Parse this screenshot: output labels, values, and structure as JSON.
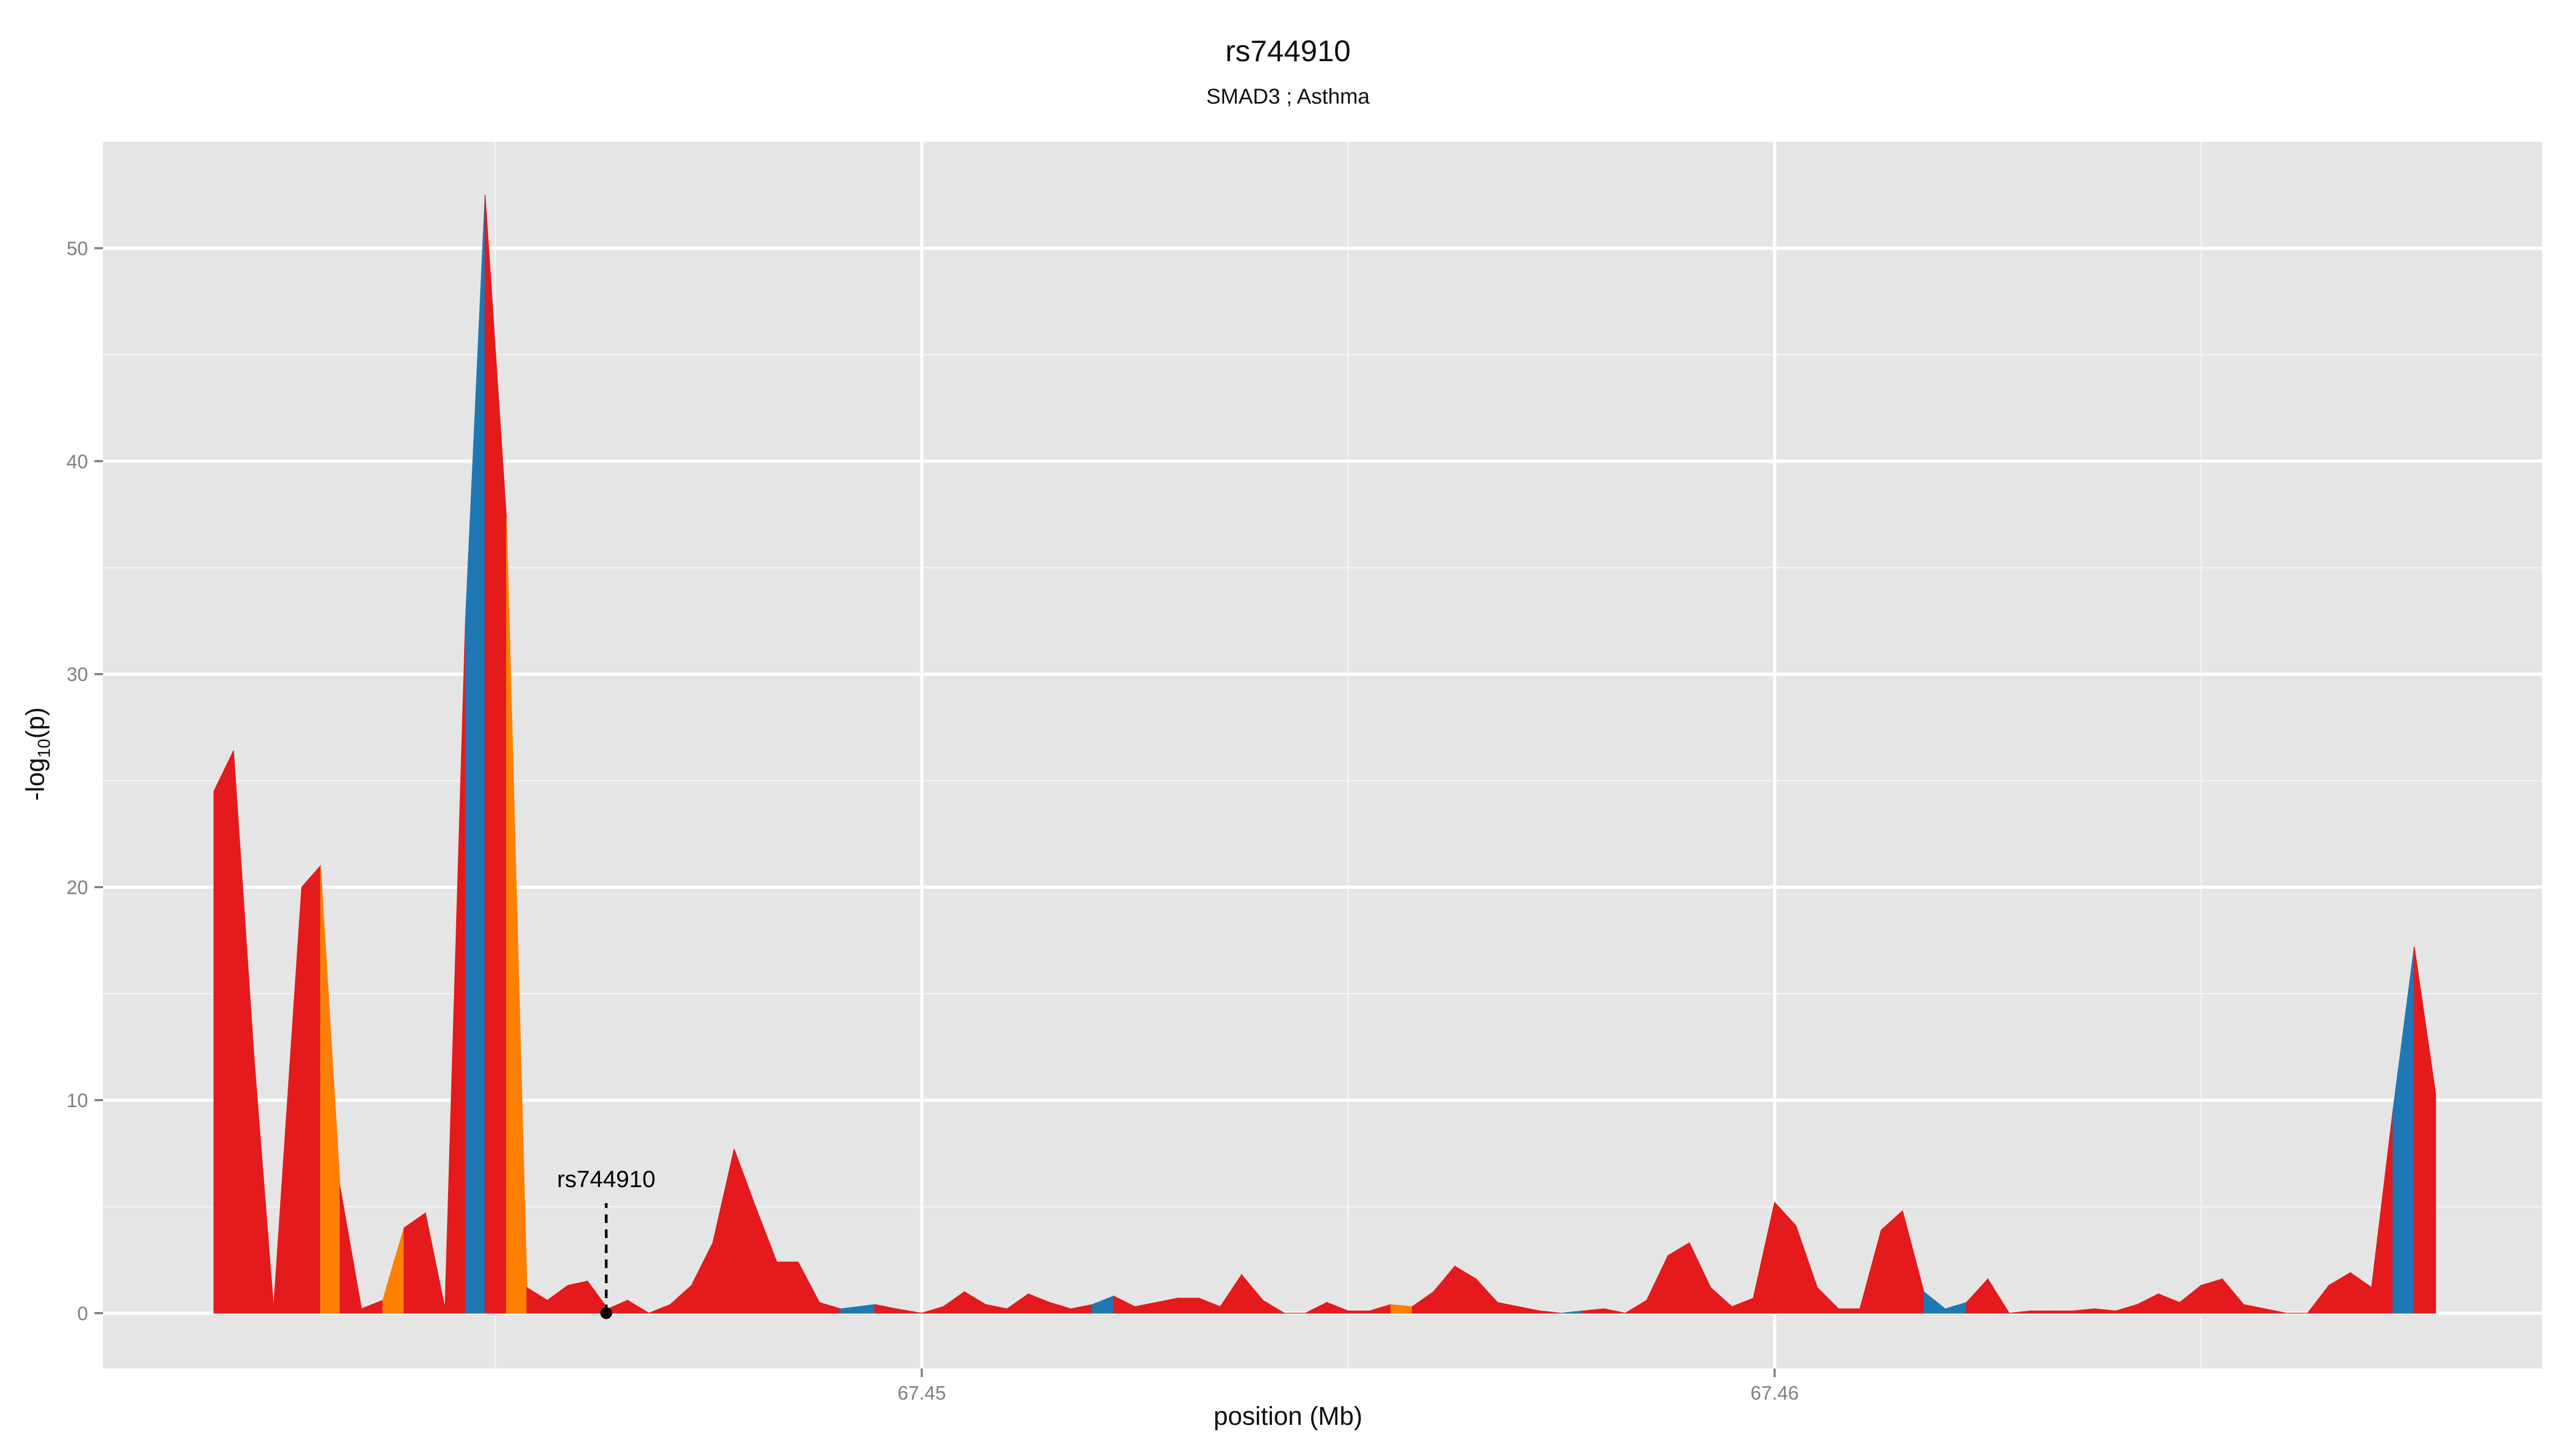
{
  "chart_data": {
    "type": "area",
    "title": "rs744910",
    "subtitle": "SMAD3 ; Asthma",
    "xlabel": "position (Mb)",
    "ylabel": "-log10(p)",
    "xlim": [
      67.4404,
      67.469
    ],
    "ylim": [
      -2.6,
      55
    ],
    "x_ticks": [
      67.45,
      67.46
    ],
    "x_tick_labels": [
      "67.45",
      "67.46"
    ],
    "y_ticks": [
      0,
      10,
      20,
      30,
      40,
      50
    ],
    "y_tick_labels": [
      "0",
      "10",
      "20",
      "30",
      "40",
      "50"
    ],
    "grid": true,
    "background": "#E5E5E5",
    "annotation": {
      "label": "rs744910",
      "x": 67.4463,
      "y": 0
    },
    "colors": {
      "red": "#E41A1C",
      "orange": "#FF7F00",
      "blue": "#1F78B4"
    },
    "points": [
      {
        "x": 67.4417,
        "y": 24.5,
        "c": "red"
      },
      {
        "x": 67.44193,
        "y": 26.4,
        "c": "red"
      },
      {
        "x": 67.44217,
        "y": 12.0,
        "c": "red"
      },
      {
        "x": 67.4424,
        "y": 0.2,
        "c": "red"
      },
      {
        "x": 67.44273,
        "y": 20.0,
        "c": "red"
      },
      {
        "x": 67.44295,
        "y": 21.0,
        "c": "orange"
      },
      {
        "x": 67.44318,
        "y": 5.9,
        "c": "red"
      },
      {
        "x": 67.44343,
        "y": 0.2,
        "c": "red"
      },
      {
        "x": 67.44368,
        "y": 0.6,
        "c": "orange"
      },
      {
        "x": 67.44393,
        "y": 4.0,
        "c": "red"
      },
      {
        "x": 67.44418,
        "y": 4.7,
        "c": "red"
      },
      {
        "x": 67.44441,
        "y": 0.2,
        "c": "red"
      },
      {
        "x": 67.44465,
        "y": 32.5,
        "c": "blue"
      },
      {
        "x": 67.44488,
        "y": 52.5,
        "c": "red"
      },
      {
        "x": 67.44513,
        "y": 37.3,
        "c": "orange"
      },
      {
        "x": 67.44537,
        "y": 1.2,
        "c": "red"
      },
      {
        "x": 67.44561,
        "y": 0.6,
        "c": "red"
      },
      {
        "x": 67.44585,
        "y": 1.3,
        "c": "red"
      },
      {
        "x": 67.44608,
        "y": 1.5,
        "c": "red"
      },
      {
        "x": 67.44632,
        "y": 0.2,
        "c": "red"
      },
      {
        "x": 67.44655,
        "y": 0.6,
        "c": "red"
      },
      {
        "x": 67.4468,
        "y": 0.0,
        "c": "red"
      },
      {
        "x": 67.44705,
        "y": 0.4,
        "c": "red"
      },
      {
        "x": 67.4473,
        "y": 1.3,
        "c": "red"
      },
      {
        "x": 67.44755,
        "y": 3.3,
        "c": "red"
      },
      {
        "x": 67.4478,
        "y": 7.7,
        "c": "red"
      },
      {
        "x": 67.44805,
        "y": 5.0,
        "c": "red"
      },
      {
        "x": 67.4483,
        "y": 2.4,
        "c": "red"
      },
      {
        "x": 67.44855,
        "y": 2.4,
        "c": "red"
      },
      {
        "x": 67.4488,
        "y": 0.5,
        "c": "red"
      },
      {
        "x": 67.44905,
        "y": 0.2,
        "c": "blue"
      },
      {
        "x": 67.44945,
        "y": 0.4,
        "c": "red"
      },
      {
        "x": 67.4497,
        "y": 0.2,
        "c": "red"
      },
      {
        "x": 67.45,
        "y": 0.0,
        "c": "red"
      },
      {
        "x": 67.45025,
        "y": 0.3,
        "c": "red"
      },
      {
        "x": 67.4505,
        "y": 1.0,
        "c": "red"
      },
      {
        "x": 67.45075,
        "y": 0.4,
        "c": "red"
      },
      {
        "x": 67.451,
        "y": 0.2,
        "c": "red"
      },
      {
        "x": 67.45125,
        "y": 0.9,
        "c": "red"
      },
      {
        "x": 67.4515,
        "y": 0.5,
        "c": "red"
      },
      {
        "x": 67.45175,
        "y": 0.2,
        "c": "red"
      },
      {
        "x": 67.452,
        "y": 0.4,
        "c": "blue"
      },
      {
        "x": 67.45225,
        "y": 0.8,
        "c": "red"
      },
      {
        "x": 67.4525,
        "y": 0.3,
        "c": "red"
      },
      {
        "x": 67.45275,
        "y": 0.5,
        "c": "red"
      },
      {
        "x": 67.453,
        "y": 0.7,
        "c": "red"
      },
      {
        "x": 67.45325,
        "y": 0.7,
        "c": "red"
      },
      {
        "x": 67.4535,
        "y": 0.3,
        "c": "red"
      },
      {
        "x": 67.45375,
        "y": 1.8,
        "c": "red"
      },
      {
        "x": 67.454,
        "y": 0.6,
        "c": "red"
      },
      {
        "x": 67.45425,
        "y": 0.0,
        "c": "red"
      },
      {
        "x": 67.4545,
        "y": 0.0,
        "c": "red"
      },
      {
        "x": 67.45475,
        "y": 0.5,
        "c": "red"
      },
      {
        "x": 67.455,
        "y": 0.1,
        "c": "red"
      },
      {
        "x": 67.45525,
        "y": 0.1,
        "c": "red"
      },
      {
        "x": 67.4555,
        "y": 0.4,
        "c": "orange"
      },
      {
        "x": 67.45575,
        "y": 0.3,
        "c": "red"
      },
      {
        "x": 67.456,
        "y": 1.0,
        "c": "red"
      },
      {
        "x": 67.45625,
        "y": 2.2,
        "c": "red"
      },
      {
        "x": 67.4565,
        "y": 1.6,
        "c": "red"
      },
      {
        "x": 67.45675,
        "y": 0.5,
        "c": "red"
      },
      {
        "x": 67.457,
        "y": 0.3,
        "c": "red"
      },
      {
        "x": 67.45725,
        "y": 0.1,
        "c": "red"
      },
      {
        "x": 67.4575,
        "y": 0.0,
        "c": "blue"
      },
      {
        "x": 67.45775,
        "y": 0.1,
        "c": "red"
      },
      {
        "x": 67.458,
        "y": 0.2,
        "c": "red"
      },
      {
        "x": 67.45825,
        "y": 0.0,
        "c": "red"
      },
      {
        "x": 67.4585,
        "y": 0.6,
        "c": "red"
      },
      {
        "x": 67.45875,
        "y": 2.7,
        "c": "red"
      },
      {
        "x": 67.459,
        "y": 3.3,
        "c": "red"
      },
      {
        "x": 67.45925,
        "y": 1.2,
        "c": "red"
      },
      {
        "x": 67.4595,
        "y": 0.3,
        "c": "red"
      },
      {
        "x": 67.45975,
        "y": 0.7,
        "c": "red"
      },
      {
        "x": 67.46,
        "y": 5.2,
        "c": "red"
      },
      {
        "x": 67.46025,
        "y": 4.1,
        "c": "red"
      },
      {
        "x": 67.4605,
        "y": 1.2,
        "c": "red"
      },
      {
        "x": 67.46075,
        "y": 0.2,
        "c": "red"
      },
      {
        "x": 67.461,
        "y": 0.2,
        "c": "red"
      },
      {
        "x": 67.46125,
        "y": 3.9,
        "c": "red"
      },
      {
        "x": 67.4615,
        "y": 4.8,
        "c": "red"
      },
      {
        "x": 67.46175,
        "y": 1.0,
        "c": "blue"
      },
      {
        "x": 67.462,
        "y": 0.2,
        "c": "blue"
      },
      {
        "x": 67.46225,
        "y": 0.5,
        "c": "red"
      },
      {
        "x": 67.4625,
        "y": 1.6,
        "c": "red"
      },
      {
        "x": 67.46275,
        "y": 0.0,
        "c": "red"
      },
      {
        "x": 67.463,
        "y": 0.1,
        "c": "red"
      },
      {
        "x": 67.46325,
        "y": 0.1,
        "c": "red"
      },
      {
        "x": 67.4635,
        "y": 0.1,
        "c": "red"
      },
      {
        "x": 67.46375,
        "y": 0.2,
        "c": "red"
      },
      {
        "x": 67.464,
        "y": 0.1,
        "c": "red"
      },
      {
        "x": 67.46425,
        "y": 0.4,
        "c": "red"
      },
      {
        "x": 67.4645,
        "y": 0.9,
        "c": "red"
      },
      {
        "x": 67.46475,
        "y": 0.5,
        "c": "red"
      },
      {
        "x": 67.465,
        "y": 1.3,
        "c": "red"
      },
      {
        "x": 67.46525,
        "y": 1.6,
        "c": "red"
      },
      {
        "x": 67.4655,
        "y": 0.4,
        "c": "red"
      },
      {
        "x": 67.46575,
        "y": 0.2,
        "c": "red"
      },
      {
        "x": 67.466,
        "y": 0.0,
        "c": "red"
      },
      {
        "x": 67.46625,
        "y": 0.0,
        "c": "red"
      },
      {
        "x": 67.4665,
        "y": 1.3,
        "c": "red"
      },
      {
        "x": 67.46675,
        "y": 1.9,
        "c": "red"
      },
      {
        "x": 67.467,
        "y": 1.2,
        "c": "red"
      },
      {
        "x": 67.46725,
        "y": 9.5,
        "c": "blue"
      },
      {
        "x": 67.4675,
        "y": 17.2,
        "c": "red"
      },
      {
        "x": 67.46775,
        "y": 10.3,
        "c": "red"
      }
    ]
  }
}
